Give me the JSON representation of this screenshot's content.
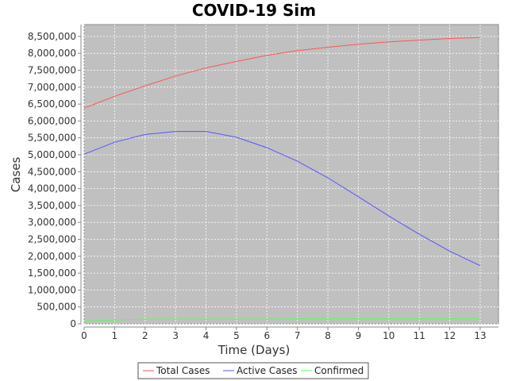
{
  "chart_data": {
    "type": "line",
    "title": "COVID-19 Sim",
    "xlabel": "Time (Days)",
    "ylabel": "Cases",
    "xlim": [
      0,
      13.6
    ],
    "ylim": [
      0,
      8850000
    ],
    "x": [
      0,
      1,
      2,
      3,
      4,
      5,
      6,
      7,
      8,
      9,
      10,
      11,
      12,
      13
    ],
    "x_ticks": [
      "0",
      "1",
      "2",
      "3",
      "4",
      "5",
      "6",
      "7",
      "8",
      "9",
      "10",
      "11",
      "12",
      "13"
    ],
    "y_ticks": [
      {
        "value": 0,
        "label": "0"
      },
      {
        "value": 500000,
        "label": "500,000"
      },
      {
        "value": 1000000,
        "label": "1,000,000"
      },
      {
        "value": 1500000,
        "label": "1,500,000"
      },
      {
        "value": 2000000,
        "label": "2,000,000"
      },
      {
        "value": 2500000,
        "label": "2,500,000"
      },
      {
        "value": 3000000,
        "label": "3,000,000"
      },
      {
        "value": 3500000,
        "label": "3,500,000"
      },
      {
        "value": 4000000,
        "label": "4,000,000"
      },
      {
        "value": 4500000,
        "label": "4,500,000"
      },
      {
        "value": 5000000,
        "label": "5,000,000"
      },
      {
        "value": 5500000,
        "label": "5,500,000"
      },
      {
        "value": 6000000,
        "label": "6,000,000"
      },
      {
        "value": 6500000,
        "label": "6,500,000"
      },
      {
        "value": 7000000,
        "label": "7,000,000"
      },
      {
        "value": 7500000,
        "label": "7,500,000"
      },
      {
        "value": 8000000,
        "label": "8,000,000"
      },
      {
        "value": 8500000,
        "label": "8,500,000"
      }
    ],
    "grid": true,
    "legend_position": "bottom",
    "series": [
      {
        "name": "Total Cases",
        "color": "#ff5555",
        "values": [
          6380000,
          6730000,
          7040000,
          7330000,
          7570000,
          7760000,
          7940000,
          8080000,
          8180000,
          8270000,
          8340000,
          8390000,
          8440000,
          8470000
        ]
      },
      {
        "name": "Active Cases",
        "color": "#5555ff",
        "values": [
          5020000,
          5370000,
          5600000,
          5690000,
          5690000,
          5520000,
          5210000,
          4810000,
          4320000,
          3760000,
          3190000,
          2650000,
          2150000,
          1720000
        ]
      },
      {
        "name": "Confirmed",
        "color": "#55ff55",
        "values": [
          110000,
          110000,
          140000,
          140000,
          140000,
          140000,
          140000,
          150000,
          150000,
          150000,
          150000,
          150000,
          150000,
          150000
        ]
      }
    ]
  }
}
